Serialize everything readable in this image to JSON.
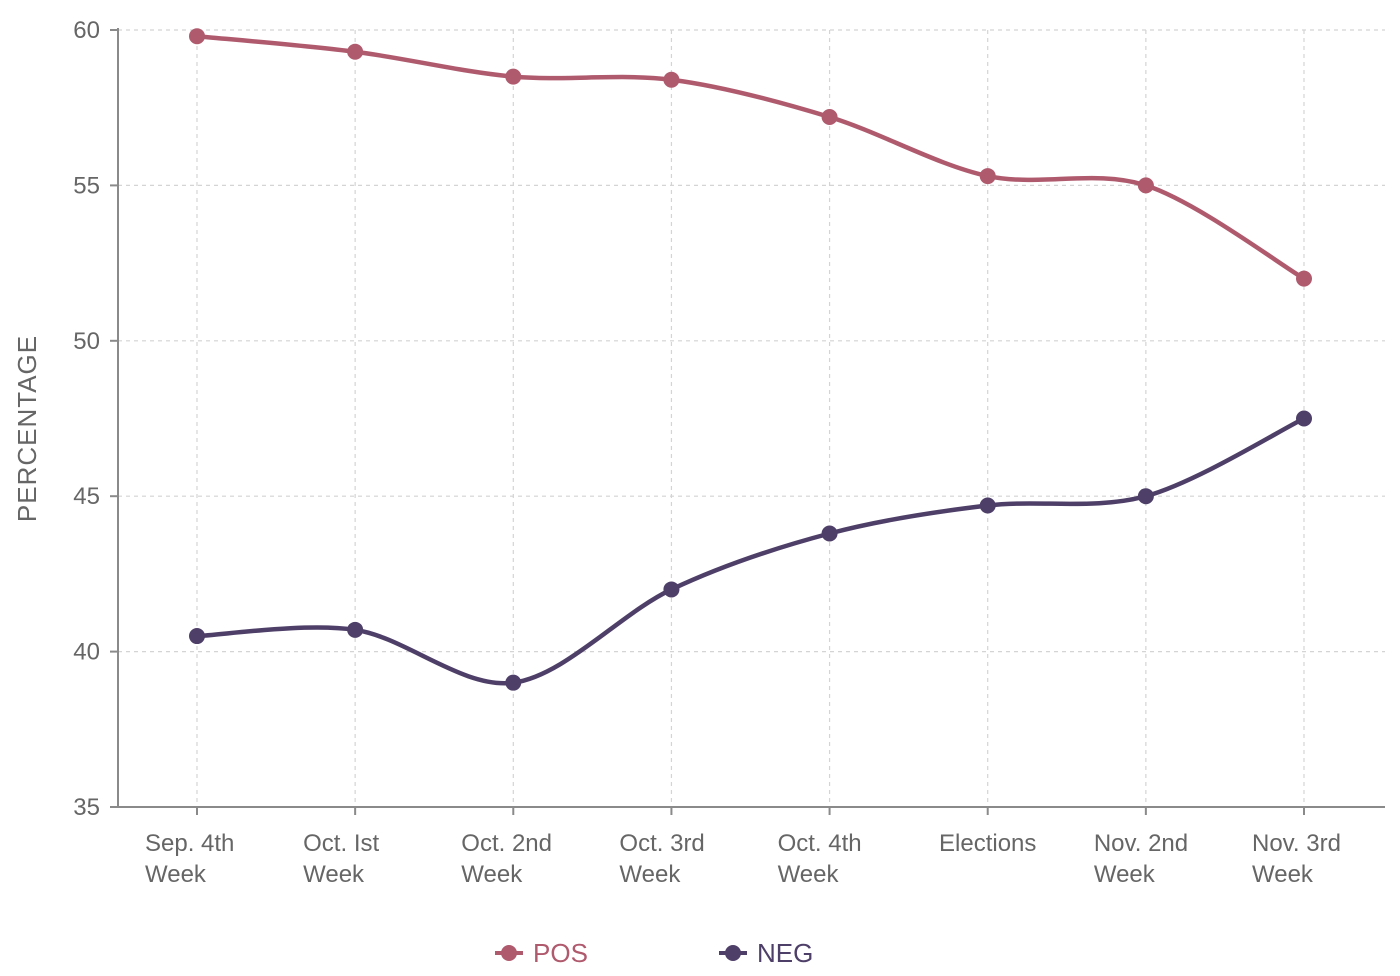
{
  "chart_data": {
    "type": "line",
    "title": "",
    "xlabel": "",
    "ylabel": "PERCENTAGE",
    "categories": [
      [
        "Sep. 4th",
        "Week"
      ],
      [
        "Oct. Ist",
        "Week"
      ],
      [
        "Oct. 2nd",
        "Week"
      ],
      [
        "Oct. 3rd",
        "Week"
      ],
      [
        "Oct. 4th",
        "Week"
      ],
      [
        "Elections"
      ],
      [
        "Nov. 2nd",
        "Week"
      ],
      [
        "Nov. 3rd",
        "Week"
      ]
    ],
    "ylim": [
      35,
      60
    ],
    "yticks": [
      35,
      40,
      45,
      50,
      55,
      60
    ],
    "grid": true,
    "legend": "bottom-center",
    "series": [
      {
        "name": "POS",
        "color": "#b05a6e",
        "values": [
          59.8,
          59.3,
          58.5,
          58.4,
          57.2,
          55.3,
          55.0,
          52.0
        ]
      },
      {
        "name": "NEG",
        "color": "#4e3f68",
        "values": [
          40.5,
          40.7,
          39.0,
          42.0,
          43.8,
          44.7,
          45.0,
          47.5
        ]
      }
    ]
  }
}
